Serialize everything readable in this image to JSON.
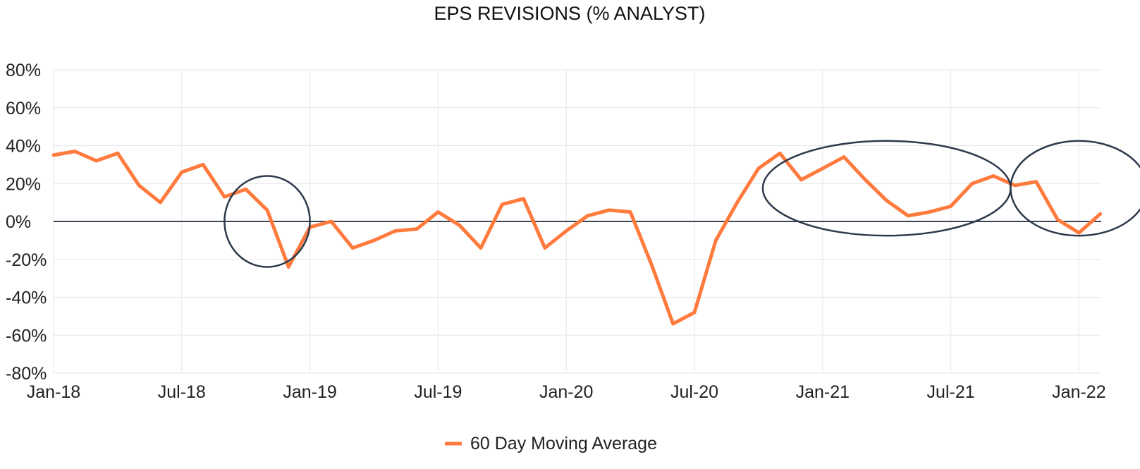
{
  "chart_data": {
    "type": "line",
    "title": "EPS REVISIONS (% ANALYST)",
    "xlabel": "",
    "ylabel": "",
    "ylim": [
      -80,
      80
    ],
    "y_ticks": [
      "80%",
      "60%",
      "40%",
      "20%",
      "0%",
      "-20%",
      "-40%",
      "-60%",
      "-80%"
    ],
    "y_tick_values": [
      80,
      60,
      40,
      20,
      0,
      -20,
      -40,
      -60,
      -80
    ],
    "x_ticks": [
      "Jan-18",
      "Jul-18",
      "Jan-19",
      "Jul-19",
      "Jan-20",
      "Jul-20",
      "Jan-21",
      "Jul-21",
      "Jan-22"
    ],
    "x_tick_months": [
      0,
      6,
      12,
      18,
      24,
      30,
      36,
      42,
      48
    ],
    "x_range_months": [
      0,
      49
    ],
    "grid": true,
    "legend_position": "bottom-center",
    "line_color": "#FF7A3D",
    "zero_line_color": "#3A4454",
    "annotation_color": "#2E3A4C",
    "series": [
      {
        "name": "60 Day Moving Average",
        "points": [
          [
            "Jan-18",
            35
          ],
          [
            "Feb-18",
            37
          ],
          [
            "Mar-18",
            32
          ],
          [
            "Apr-18",
            36
          ],
          [
            "May-18",
            19
          ],
          [
            "Jun-18",
            10
          ],
          [
            "Jul-18",
            26
          ],
          [
            "Aug-18",
            30
          ],
          [
            "Sep-18",
            13
          ],
          [
            "Oct-18",
            17
          ],
          [
            "Nov-18",
            6
          ],
          [
            "Dec-18",
            -24
          ],
          [
            "Jan-19",
            -3
          ],
          [
            "Feb-19",
            0
          ],
          [
            "Mar-19",
            -14
          ],
          [
            "Apr-19",
            -10
          ],
          [
            "May-19",
            -5
          ],
          [
            "Jun-19",
            -4
          ],
          [
            "Jul-19",
            5
          ],
          [
            "Aug-19",
            -2
          ],
          [
            "Sep-19",
            -14
          ],
          [
            "Oct-19",
            9
          ],
          [
            "Nov-19",
            12
          ],
          [
            "Dec-19",
            -14
          ],
          [
            "Jan-20",
            -5
          ],
          [
            "Feb-20",
            3
          ],
          [
            "Mar-20",
            6
          ],
          [
            "Apr-20",
            5
          ],
          [
            "May-20",
            -23
          ],
          [
            "Jun-20",
            -54
          ],
          [
            "Jul-20",
            -48
          ],
          [
            "Aug-20",
            -10
          ],
          [
            "Sep-20",
            10
          ],
          [
            "Oct-20",
            28
          ],
          [
            "Nov-20",
            36
          ],
          [
            "Dec-20",
            22
          ],
          [
            "Jan-21",
            28
          ],
          [
            "Feb-21",
            34
          ],
          [
            "Mar-21",
            22
          ],
          [
            "Apr-21",
            11
          ],
          [
            "May-21",
            3
          ],
          [
            "Jun-21",
            5
          ],
          [
            "Jul-21",
            8
          ],
          [
            "Aug-21",
            20
          ],
          [
            "Sep-21",
            24
          ],
          [
            "Oct-21",
            19
          ],
          [
            "Nov-21",
            21
          ],
          [
            "Dec-21",
            1
          ],
          [
            "Jan-22",
            -6
          ],
          [
            "Feb-22",
            4
          ]
        ]
      }
    ],
    "annotations": [
      {
        "type": "ellipse",
        "center": [
          "Nov-18",
          0
        ],
        "x_radius_months": 2.0,
        "y_radius": 24
      },
      {
        "type": "ellipse",
        "center": [
          "Apr-21",
          17.5
        ],
        "x_radius_months": 5.8,
        "y_radius": 25
      },
      {
        "type": "ellipse",
        "center": [
          "Jan-22",
          17.5
        ],
        "x_radius_months": 3.2,
        "y_radius": 25
      }
    ]
  }
}
